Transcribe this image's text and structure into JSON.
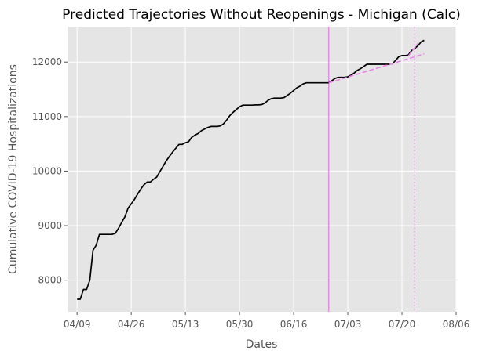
{
  "chart_data": {
    "type": "line",
    "title": "Predicted Trajectories Without Reopenings - Michigan (Calc)",
    "xlabel": "Dates",
    "ylabel": "Cumulative COVID-19 Hospitalizations",
    "x_tick_labels": [
      "04/09",
      "04/26",
      "05/13",
      "05/30",
      "06/16",
      "07/03",
      "07/20",
      "08/06"
    ],
    "y_tick_labels": [
      "8000",
      "9000",
      "10000",
      "11000",
      "12000"
    ],
    "y_ticks": [
      8000,
      9000,
      10000,
      11000,
      12000
    ],
    "xlim": [
      "2020-04-06",
      "2020-08-06"
    ],
    "ylim": [
      7420,
      12650
    ],
    "grid": true,
    "background": "#e5e5e5",
    "series": [
      {
        "style": "solid",
        "color": "#000000",
        "points": [
          [
            "2020-04-09",
            7650
          ],
          [
            "2020-04-10",
            7650
          ],
          [
            "2020-04-11",
            7830
          ],
          [
            "2020-04-12",
            7830
          ],
          [
            "2020-04-13",
            8000
          ],
          [
            "2020-04-14",
            8550
          ],
          [
            "2020-04-15",
            8640
          ],
          [
            "2020-04-16",
            8840
          ],
          [
            "2020-04-17",
            8840
          ],
          [
            "2020-04-18",
            8840
          ],
          [
            "2020-04-19",
            8840
          ],
          [
            "2020-04-20",
            8840
          ],
          [
            "2020-04-21",
            8860
          ],
          [
            "2020-04-22",
            8950
          ],
          [
            "2020-04-23",
            9060
          ],
          [
            "2020-04-24",
            9160
          ],
          [
            "2020-04-25",
            9320
          ],
          [
            "2020-04-26",
            9400
          ],
          [
            "2020-04-27",
            9480
          ],
          [
            "2020-04-28",
            9580
          ],
          [
            "2020-04-29",
            9670
          ],
          [
            "2020-04-30",
            9750
          ],
          [
            "2020-05-01",
            9800
          ],
          [
            "2020-05-02",
            9800
          ],
          [
            "2020-05-03",
            9850
          ],
          [
            "2020-05-04",
            9890
          ],
          [
            "2020-05-05",
            9990
          ],
          [
            "2020-05-06",
            10090
          ],
          [
            "2020-05-07",
            10190
          ],
          [
            "2020-05-08",
            10270
          ],
          [
            "2020-05-09",
            10350
          ],
          [
            "2020-05-10",
            10420
          ],
          [
            "2020-05-11",
            10490
          ],
          [
            "2020-05-12",
            10490
          ],
          [
            "2020-05-13",
            10520
          ],
          [
            "2020-05-14",
            10540
          ],
          [
            "2020-05-15",
            10620
          ],
          [
            "2020-05-16",
            10660
          ],
          [
            "2020-05-17",
            10690
          ],
          [
            "2020-05-18",
            10740
          ],
          [
            "2020-05-19",
            10770
          ],
          [
            "2020-05-20",
            10800
          ],
          [
            "2020-05-21",
            10820
          ],
          [
            "2020-05-22",
            10820
          ],
          [
            "2020-05-23",
            10820
          ],
          [
            "2020-05-24",
            10830
          ],
          [
            "2020-05-25",
            10870
          ],
          [
            "2020-05-26",
            10940
          ],
          [
            "2020-05-27",
            11020
          ],
          [
            "2020-05-28",
            11080
          ],
          [
            "2020-05-29",
            11130
          ],
          [
            "2020-05-30",
            11180
          ],
          [
            "2020-05-31",
            11210
          ],
          [
            "2020-06-01",
            11210
          ],
          [
            "2020-06-02",
            11210
          ],
          [
            "2020-06-03",
            11210
          ],
          [
            "2020-06-04",
            11215
          ],
          [
            "2020-06-05",
            11215
          ],
          [
            "2020-06-06",
            11220
          ],
          [
            "2020-06-07",
            11250
          ],
          [
            "2020-06-08",
            11300
          ],
          [
            "2020-06-09",
            11330
          ],
          [
            "2020-06-10",
            11340
          ],
          [
            "2020-06-11",
            11340
          ],
          [
            "2020-06-12",
            11340
          ],
          [
            "2020-06-13",
            11350
          ],
          [
            "2020-06-14",
            11390
          ],
          [
            "2020-06-15",
            11430
          ],
          [
            "2020-06-16",
            11480
          ],
          [
            "2020-06-17",
            11530
          ],
          [
            "2020-06-18",
            11560
          ],
          [
            "2020-06-19",
            11600
          ],
          [
            "2020-06-20",
            11620
          ],
          [
            "2020-06-21",
            11620
          ],
          [
            "2020-06-22",
            11620
          ],
          [
            "2020-06-23",
            11620
          ],
          [
            "2020-06-24",
            11620
          ],
          [
            "2020-06-25",
            11620
          ],
          [
            "2020-06-26",
            11620
          ],
          [
            "2020-06-27",
            11620
          ],
          [
            "2020-06-28",
            11660
          ],
          [
            "2020-06-29",
            11700
          ],
          [
            "2020-06-30",
            11720
          ],
          [
            "2020-07-01",
            11720
          ],
          [
            "2020-07-02",
            11720
          ],
          [
            "2020-07-03",
            11730
          ],
          [
            "2020-07-04",
            11760
          ],
          [
            "2020-07-05",
            11800
          ],
          [
            "2020-07-06",
            11850
          ],
          [
            "2020-07-07",
            11880
          ],
          [
            "2020-07-08",
            11920
          ],
          [
            "2020-07-09",
            11960
          ],
          [
            "2020-07-10",
            11960
          ],
          [
            "2020-07-11",
            11960
          ],
          [
            "2020-07-12",
            11960
          ],
          [
            "2020-07-13",
            11960
          ],
          [
            "2020-07-14",
            11960
          ],
          [
            "2020-07-15",
            11960
          ],
          [
            "2020-07-16",
            11960
          ],
          [
            "2020-07-17",
            11970
          ],
          [
            "2020-07-18",
            12030
          ],
          [
            "2020-07-19",
            12100
          ],
          [
            "2020-07-20",
            12120
          ],
          [
            "2020-07-21",
            12120
          ],
          [
            "2020-07-22",
            12130
          ],
          [
            "2020-07-23",
            12210
          ],
          [
            "2020-07-24",
            12250
          ],
          [
            "2020-07-25",
            12300
          ],
          [
            "2020-07-26",
            12370
          ],
          [
            "2020-07-27",
            12400
          ]
        ]
      },
      {
        "style": "dashed",
        "color": "#ee82ee",
        "points": [
          [
            "2020-06-27",
            11620
          ],
          [
            "2020-07-27",
            12150
          ]
        ]
      },
      {
        "style": "dashed",
        "color": "#ee82ee",
        "points": [
          [
            "2020-07-22",
            12110
          ],
          [
            "2020-07-25",
            12340
          ]
        ]
      }
    ],
    "vertical_lines": [
      {
        "x": "2020-06-27",
        "style": "solid",
        "color": "#ee82ee"
      },
      {
        "x": "2020-07-24",
        "style": "dotted",
        "color": "#ee82ee"
      }
    ]
  }
}
